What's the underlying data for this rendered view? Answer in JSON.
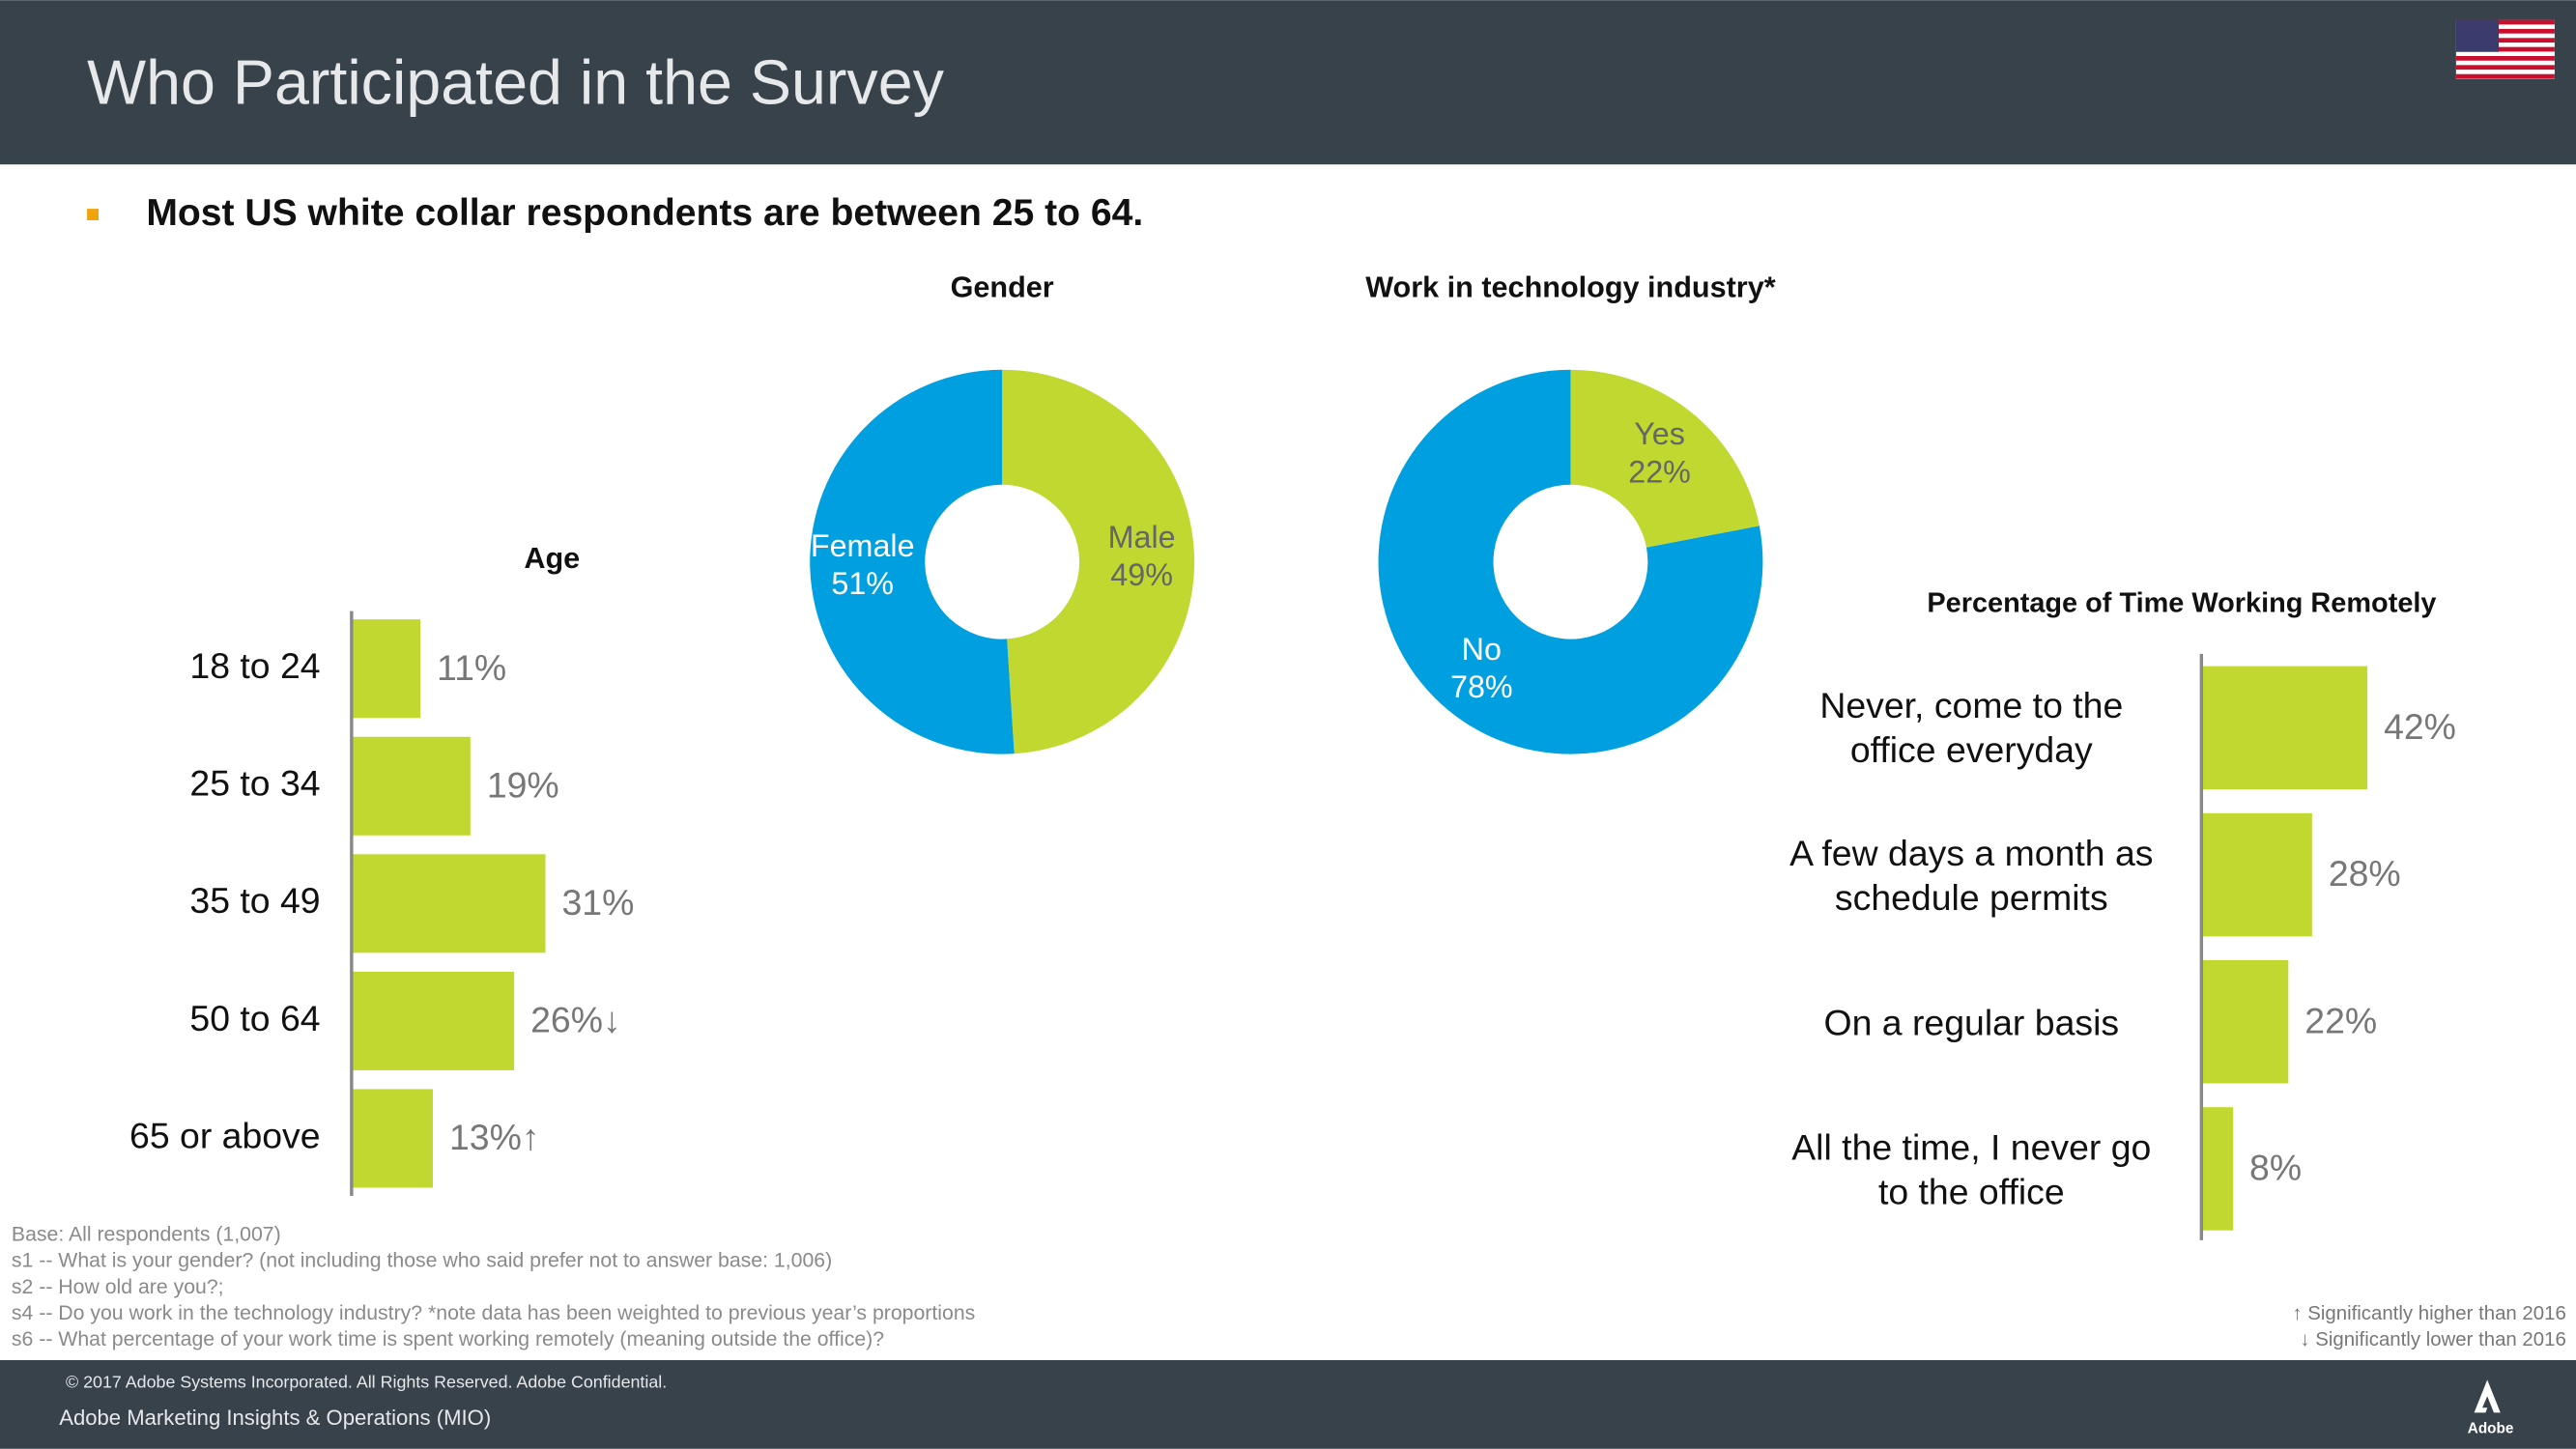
{
  "header": {
    "title": "Who Participated in the Survey",
    "bullet": "Most US white collar respondents are between 25 to 64."
  },
  "chart_data": [
    {
      "type": "bar",
      "orientation": "horizontal",
      "title": "Age",
      "categories": [
        "18 to 24",
        "25 to 34",
        "35 to 49",
        "50 to 64",
        "65 or above"
      ],
      "values": [
        11,
        19,
        31,
        26,
        13
      ],
      "value_labels": [
        "11%",
        "19%",
        "31%",
        "26%↓",
        "13%↑"
      ],
      "color": "#c0d82f"
    },
    {
      "type": "donut",
      "title": "Gender",
      "categories": [
        "Male",
        "Female"
      ],
      "values": [
        49,
        51
      ],
      "value_labels": [
        "49%",
        "51%"
      ],
      "colors": [
        "#c0d82f",
        "#00a0e0"
      ]
    },
    {
      "type": "donut",
      "title": "Work in technology industry*",
      "categories": [
        "Yes",
        "No"
      ],
      "values": [
        22,
        78
      ],
      "value_labels": [
        "22%",
        "78%"
      ],
      "colors": [
        "#c0d82f",
        "#00a0e0"
      ]
    },
    {
      "type": "bar",
      "orientation": "horizontal",
      "title": "Percentage of Time Working Remotely",
      "categories": [
        "Never, come to the office everyday",
        "A few days a month as schedule permits",
        "On a regular basis",
        "All the time, I never go to the office"
      ],
      "values": [
        42,
        28,
        22,
        8
      ],
      "value_labels": [
        "42%",
        "28%",
        "22%",
        "8%"
      ],
      "color": "#c0d82f"
    }
  ],
  "footnotes": [
    "Base: All respondents (1,007)",
    "s1 -- What is your gender? (not including those who said prefer not to answer base: 1,006)",
    "s2 -- How old are you?;",
    "s4 -- Do you work in the technology industry? *note data has been weighted to previous year’s proportions",
    "s6 -- What percentage of your work time is spent working remotely (meaning outside the office)?"
  ],
  "significance": [
    "↑  Significantly higher than 2016",
    "↓  Significantly lower than 2016"
  ],
  "footer": {
    "copyright": "© 2017 Adobe Systems Incorporated.  All Rights Reserved.  Adobe Confidential.",
    "department": "Adobe Marketing Insights & Operations (MIO)",
    "logo": "Adobe"
  }
}
